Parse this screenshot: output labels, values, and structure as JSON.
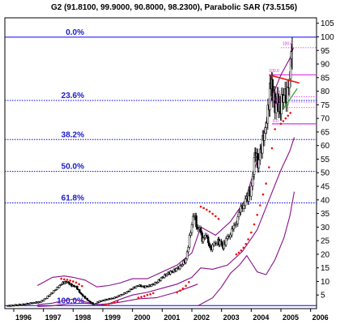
{
  "chart_data": {
    "type": "line",
    "title": "G2 (91.8100, 99.9000, 90.8000, 98.2300), Parabolic SAR (73.5156)",
    "xlabel": "",
    "ylabel": "",
    "x_ticks": [
      "1996",
      "1997",
      "1998",
      "1999",
      "2000",
      "2001",
      "2002",
      "2003",
      "2004",
      "2005",
      "2006"
    ],
    "y_ticks": [
      5,
      10,
      15,
      20,
      25,
      30,
      35,
      40,
      45,
      50,
      55,
      60,
      65,
      70,
      75,
      80,
      85,
      90,
      95,
      100,
      105
    ],
    "xlim": [
      1995.7,
      2006.2
    ],
    "ylim": [
      0,
      107
    ],
    "y_axis_position": "right",
    "grid": false,
    "price_series": [
      [
        1995.8,
        1.0
      ],
      [
        1996.0,
        1.2
      ],
      [
        1996.3,
        1.5
      ],
      [
        1996.6,
        2.0
      ],
      [
        1996.9,
        2.5
      ],
      [
        1997.1,
        4.0
      ],
      [
        1997.3,
        6.0
      ],
      [
        1997.5,
        8.0
      ],
      [
        1997.65,
        9.5
      ],
      [
        1997.8,
        9.8
      ],
      [
        1997.95,
        8.5
      ],
      [
        1998.1,
        8.0
      ],
      [
        1998.25,
        5.5
      ],
      [
        1998.4,
        4.0
      ],
      [
        1998.55,
        2.5
      ],
      [
        1998.7,
        1.5
      ],
      [
        1998.85,
        2.5
      ],
      [
        1999.0,
        3.0
      ],
      [
        1999.2,
        3.5
      ],
      [
        1999.4,
        4.0
      ],
      [
        1999.6,
        5.0
      ],
      [
        1999.8,
        6.0
      ],
      [
        2000.0,
        7.5
      ],
      [
        2000.2,
        8.5
      ],
      [
        2000.4,
        8.0
      ],
      [
        2000.6,
        8.5
      ],
      [
        2000.8,
        9.5
      ],
      [
        2001.0,
        11.5
      ],
      [
        2001.2,
        13.0
      ],
      [
        2001.4,
        14.0
      ],
      [
        2001.6,
        15.5
      ],
      [
        2001.8,
        18.0
      ],
      [
        2001.92,
        26.0
      ],
      [
        2002.0,
        31.0
      ],
      [
        2002.08,
        35.0
      ],
      [
        2002.15,
        31.0
      ],
      [
        2002.25,
        29.0
      ],
      [
        2002.35,
        25.0
      ],
      [
        2002.45,
        27.0
      ],
      [
        2002.55,
        24.0
      ],
      [
        2002.65,
        22.0
      ],
      [
        2002.75,
        23.5
      ],
      [
        2002.85,
        25.0
      ],
      [
        2002.95,
        24.0
      ],
      [
        2003.05,
        23.0
      ],
      [
        2003.15,
        25.0
      ],
      [
        2003.25,
        27.0
      ],
      [
        2003.35,
        29.0
      ],
      [
        2003.45,
        31.0
      ],
      [
        2003.55,
        34.0
      ],
      [
        2003.65,
        37.0
      ],
      [
        2003.75,
        39.0
      ],
      [
        2003.85,
        40.0
      ],
      [
        2003.95,
        43.0
      ],
      [
        2004.05,
        47.0
      ],
      [
        2004.1,
        55.0
      ],
      [
        2004.15,
        58.0
      ],
      [
        2004.22,
        53.0
      ],
      [
        2004.3,
        57.0
      ],
      [
        2004.38,
        62.0
      ],
      [
        2004.45,
        64.0
      ],
      [
        2004.52,
        69.0
      ],
      [
        2004.6,
        76.0
      ],
      [
        2004.66,
        84.0
      ],
      [
        2004.72,
        79.0
      ],
      [
        2004.8,
        74.0
      ],
      [
        2004.88,
        77.0
      ],
      [
        2004.95,
        73.0
      ],
      [
        2005.02,
        76.0
      ],
      [
        2005.1,
        79.0
      ],
      [
        2005.18,
        78.0
      ],
      [
        2005.26,
        81.0
      ],
      [
        2005.33,
        90.0
      ],
      [
        2005.38,
        98.0
      ]
    ],
    "sar_dots": [
      [
        1997.6,
        11.0
      ],
      [
        1997.7,
        10.8
      ],
      [
        1997.8,
        10.6
      ],
      [
        1997.9,
        10.3
      ],
      [
        1998.0,
        10.0
      ],
      [
        1998.1,
        9.6
      ],
      [
        1998.2,
        9.0
      ],
      [
        1998.3,
        8.3
      ],
      [
        1999.1,
        1.5
      ],
      [
        1999.2,
        1.7
      ],
      [
        1999.3,
        2.0
      ],
      [
        1999.4,
        2.2
      ],
      [
        1999.5,
        2.5
      ],
      [
        2000.2,
        4.0
      ],
      [
        2000.3,
        4.3
      ],
      [
        2000.4,
        4.6
      ],
      [
        2000.5,
        5.0
      ],
      [
        2000.6,
        5.3
      ],
      [
        2000.7,
        5.7
      ],
      [
        2001.5,
        6.0
      ],
      [
        2001.6,
        6.6
      ],
      [
        2001.7,
        7.4
      ],
      [
        2001.8,
        8.4
      ],
      [
        2001.9,
        9.8
      ],
      [
        2002.3,
        37.5
      ],
      [
        2002.4,
        37.0
      ],
      [
        2002.5,
        36.4
      ],
      [
        2002.6,
        35.7
      ],
      [
        2002.7,
        34.9
      ],
      [
        2002.8,
        34.0
      ],
      [
        2002.9,
        33.0
      ],
      [
        2003.5,
        20.0
      ],
      [
        2003.58,
        20.6
      ],
      [
        2003.66,
        21.4
      ],
      [
        2003.74,
        22.4
      ],
      [
        2003.82,
        23.8
      ],
      [
        2003.9,
        25.5
      ],
      [
        2004.0,
        28.0
      ],
      [
        2004.1,
        31.0
      ],
      [
        2004.2,
        34.5
      ],
      [
        2004.3,
        38.0
      ],
      [
        2004.4,
        42.0
      ],
      [
        2004.5,
        46.0
      ],
      [
        2004.6,
        52.0
      ],
      [
        2004.7,
        59.0
      ],
      [
        2004.8,
        66.0
      ],
      [
        2005.0,
        68.0
      ],
      [
        2005.08,
        69.0
      ],
      [
        2005.16,
        70.0
      ],
      [
        2005.24,
        71.0
      ],
      [
        2005.32,
        72.0
      ]
    ],
    "envelope_upper": [
      [
        1996.8,
        8.5
      ],
      [
        1997.3,
        11.5
      ],
      [
        1997.7,
        12.0
      ],
      [
        1998.0,
        11.5
      ],
      [
        1998.4,
        10.5
      ],
      [
        1998.8,
        8.0
      ],
      [
        1999.2,
        8.5
      ],
      [
        1999.6,
        9.5
      ],
      [
        2000.0,
        11.0
      ],
      [
        2000.5,
        11.0
      ],
      [
        2001.0,
        13.5
      ],
      [
        2001.5,
        16.0
      ],
      [
        2002.0,
        20.5
      ],
      [
        2002.3,
        30.0
      ],
      [
        2002.8,
        27.0
      ],
      [
        2003.3,
        32.0
      ],
      [
        2003.8,
        40.0
      ],
      [
        2004.3,
        58.0
      ],
      [
        2004.7,
        78.0
      ],
      [
        2005.0,
        86.0
      ],
      [
        2005.3,
        92.0
      ],
      [
        2005.42,
        96.0
      ]
    ],
    "envelope_lower": [
      [
        1996.8,
        1.5
      ],
      [
        1997.3,
        2.0
      ],
      [
        1997.7,
        3.0
      ],
      [
        1998.0,
        3.5
      ],
      [
        1998.4,
        2.5
      ],
      [
        1998.8,
        1.5
      ],
      [
        1999.2,
        1.8
      ],
      [
        1999.6,
        3.5
      ],
      [
        2000.0,
        5.0
      ],
      [
        2000.5,
        6.0
      ],
      [
        2001.0,
        7.5
      ],
      [
        2001.5,
        9.0
      ],
      [
        2002.0,
        11.5
      ],
      [
        2002.3,
        15.0
      ],
      [
        2002.7,
        14.5
      ],
      [
        2003.2,
        16.0
      ],
      [
        2003.7,
        21.0
      ],
      [
        2004.2,
        29.0
      ],
      [
        2004.6,
        40.0
      ],
      [
        2005.0,
        51.0
      ],
      [
        2005.3,
        58.0
      ],
      [
        2005.45,
        63.0
      ]
    ],
    "envelope_third": [
      [
        2002.2,
        1.0
      ],
      [
        2002.7,
        4.0
      ],
      [
        2003.0,
        8.0
      ],
      [
        2003.3,
        13.0
      ],
      [
        2003.6,
        16.0
      ],
      [
        2003.85,
        19.5
      ],
      [
        2004.0,
        17.0
      ],
      [
        2004.2,
        13.5
      ],
      [
        2004.5,
        12.5
      ],
      [
        2004.8,
        18.0
      ],
      [
        2005.1,
        26.0
      ],
      [
        2005.3,
        34.0
      ],
      [
        2005.45,
        43.0
      ]
    ],
    "envelope_fourth": [
      [
        1996.8,
        0.8
      ],
      [
        1997.3,
        1.0
      ],
      [
        1997.8,
        1.8
      ],
      [
        1998.4,
        2.0
      ],
      [
        1999.0,
        1.4
      ],
      [
        1999.6,
        2.4
      ],
      [
        2000.2,
        3.6
      ],
      [
        2000.8,
        4.0
      ],
      [
        2001.4,
        5.8
      ],
      [
        2001.9,
        7.8
      ],
      [
        2002.2,
        9.0
      ]
    ],
    "fibonacci_levels": [
      {
        "label": "0.0%",
        "value": 99.9
      },
      {
        "label": "23.6%",
        "value": 76.6
      },
      {
        "label": "38.2%",
        "value": 62.2
      },
      {
        "label": "50.0%",
        "value": 50.5
      },
      {
        "label": "61.8%",
        "value": 38.9
      },
      {
        "label": "100.0%",
        "value": 1.1
      }
    ],
    "magenta_levels": [
      96.0,
      86.0,
      78.0,
      76.0,
      74.0,
      68.0
    ],
    "trend_red": [
      [
        2004.6,
        86.0
      ],
      [
        2005.62,
        83.0
      ]
    ],
    "trend_green": [
      [
        2005.05,
        73.0
      ],
      [
        2005.55,
        81.0
      ]
    ],
    "annotation_labels": [
      {
        "text": "100.0",
        "x": 2005.05,
        "y": 97.0
      },
      {
        "text": "100.0",
        "x": 2004.6,
        "y": 87.0
      },
      {
        "text": "61.8",
        "x": 2004.72,
        "y": 79.0
      },
      {
        "text": "50.0",
        "x": 2004.72,
        "y": 76.5
      },
      {
        "text": "38.2",
        "x": 2004.72,
        "y": 74.5
      },
      {
        "text": "0.0",
        "x": 2004.72,
        "y": 68.5
      }
    ],
    "colors": {
      "fib_line": "#0000ff",
      "fib_text": "#1a1acc",
      "sar": "#ee1111",
      "envelope": "#881188",
      "magenta": "#dd33dd",
      "trend_red": "#ee1111",
      "trend_green": "#22aa22",
      "price": "#000000"
    }
  }
}
